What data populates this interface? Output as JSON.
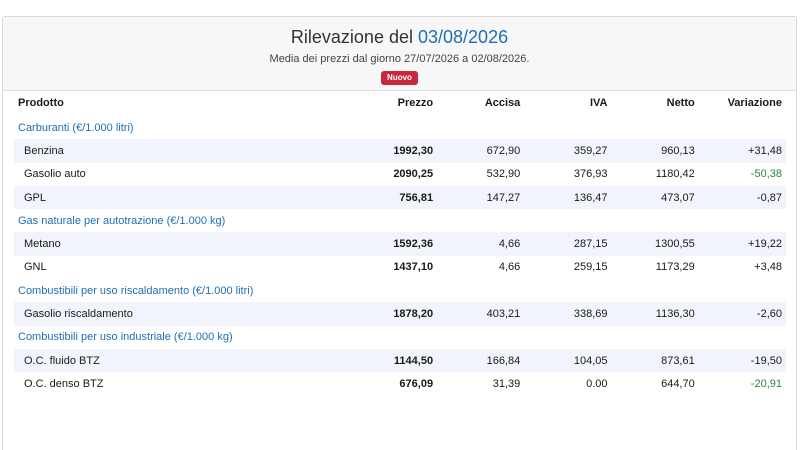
{
  "header": {
    "title_prefix": "Rilevazione del",
    "title_date": "03/08/2026",
    "subtitle": "Media dei prezzi dal giorno 27/07/2026 a 02/08/2026.",
    "badge": "Nuovo",
    "badge_color": "#c8283b",
    "accent_color": "#1f6fb5"
  },
  "table": {
    "columns": [
      "Prodotto",
      "Prezzo",
      "Accisa",
      "IVA",
      "Netto",
      "Variazione"
    ],
    "sections": [
      {
        "category": "Carburanti (€/1.000 litri)",
        "rows": [
          {
            "product": "Benzina",
            "price": "1992,30",
            "excise": "672,90",
            "vat": "359,27",
            "net": "960,13",
            "change": "+31,48",
            "change_color": "default"
          },
          {
            "product": "Gasolio auto",
            "price": "2090,25",
            "excise": "532,90",
            "vat": "376,93",
            "net": "1180,42",
            "change": "-50,38",
            "change_color": "green"
          },
          {
            "product": "GPL",
            "price": "756,81",
            "excise": "147,27",
            "vat": "136,47",
            "net": "473,07",
            "change": "-0,87",
            "change_color": "default"
          }
        ]
      },
      {
        "category": "Gas naturale per autotrazione (€/1.000 kg)",
        "rows": [
          {
            "product": "Metano",
            "price": "1592,36",
            "excise": "4,66",
            "vat": "287,15",
            "net": "1300,55",
            "change": "+19,22",
            "change_color": "default"
          },
          {
            "product": "GNL",
            "price": "1437,10",
            "excise": "4,66",
            "vat": "259,15",
            "net": "1173,29",
            "change": "+3,48",
            "change_color": "default"
          }
        ]
      },
      {
        "category": "Combustibili per uso riscaldamento (€/1.000 litri)",
        "rows": [
          {
            "product": "Gasolio riscaldamento",
            "price": "1878,20",
            "excise": "403,21",
            "vat": "338,69",
            "net": "1136,30",
            "change": "-2,60",
            "change_color": "default"
          }
        ]
      },
      {
        "category": "Combustibili per uso industriale (€/1.000 kg)",
        "rows": [
          {
            "product": "O.C. fluido BTZ",
            "price": "1144,50",
            "excise": "166,84",
            "vat": "104,05",
            "net": "873,61",
            "change": "-19,50",
            "change_color": "default"
          },
          {
            "product": "O.C. denso BTZ",
            "price": "676,09",
            "excise": "31,39",
            "vat": "0.00",
            "net": "644,70",
            "change": "-20,91",
            "change_color": "green"
          }
        ]
      }
    ]
  }
}
